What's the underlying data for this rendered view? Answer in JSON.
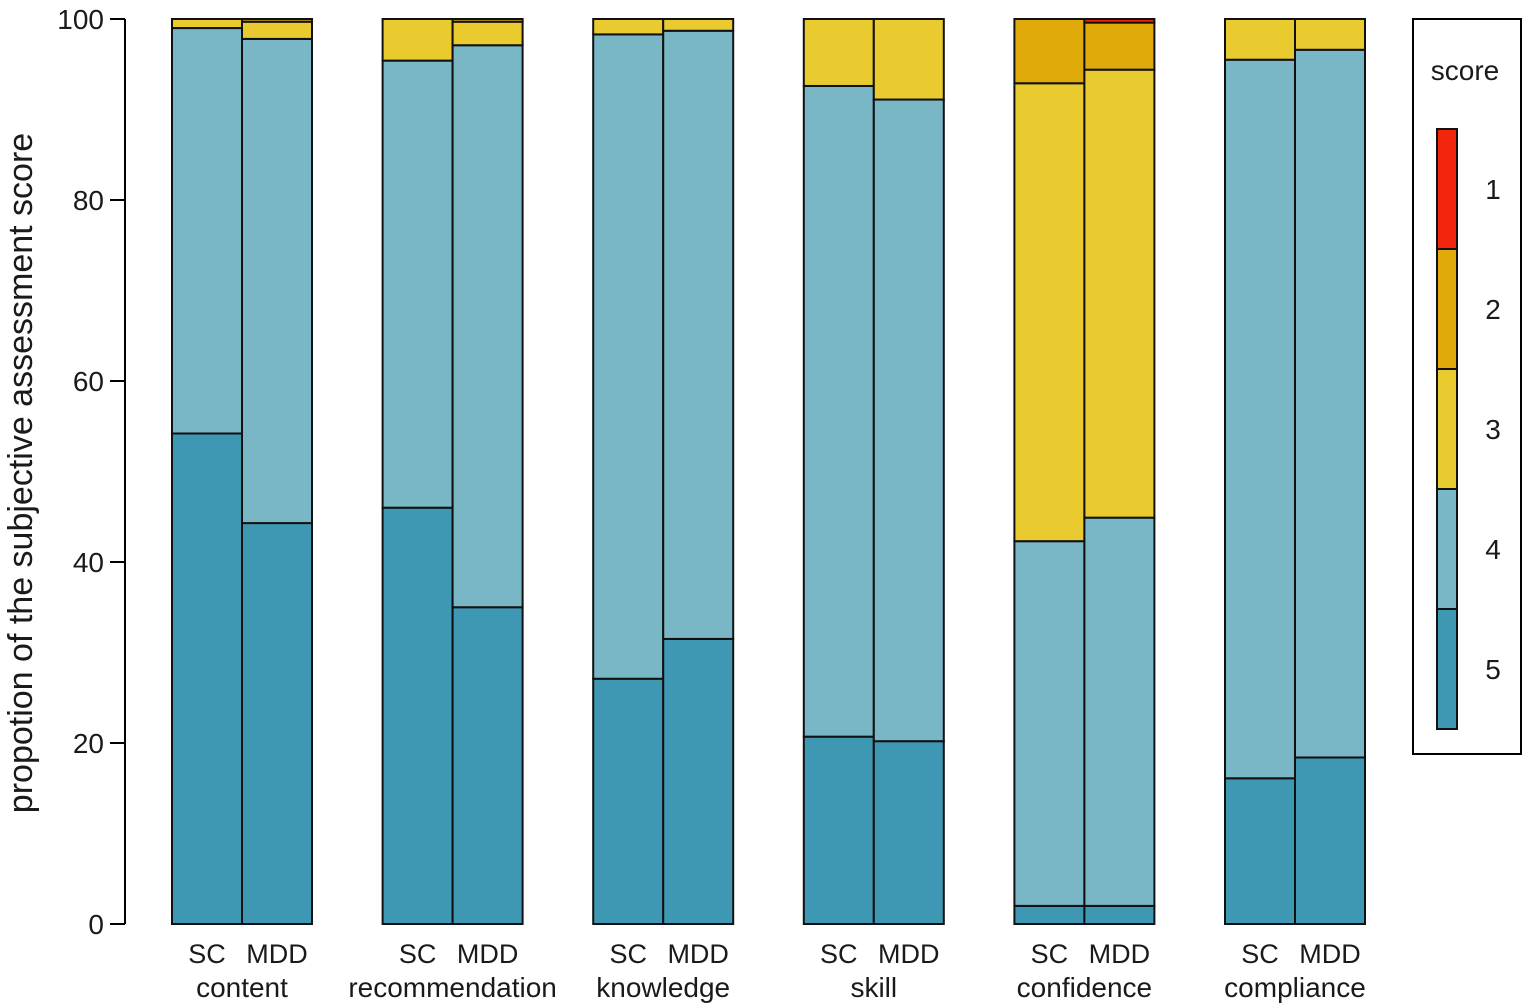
{
  "chart_data": {
    "type": "bar",
    "stacked": true,
    "ylabel": "propotion of  the subjective assessment score",
    "ylim": [
      0,
      100
    ],
    "yticks": [
      0,
      20,
      40,
      60,
      80,
      100
    ],
    "groups": [
      {
        "label": "content",
        "bars": [
          {
            "label": "SC",
            "segments": {
              "5": 54.2,
              "4": 44.8,
              "3": 1.0,
              "2": 0.0,
              "1": 0.0
            }
          },
          {
            "label": "MDD",
            "segments": {
              "5": 44.3,
              "4": 53.5,
              "3": 1.9,
              "2": 0.3,
              "1": 0.0
            }
          }
        ]
      },
      {
        "label": "recommendation",
        "bars": [
          {
            "label": "SC",
            "segments": {
              "5": 46.0,
              "4": 49.4,
              "3": 4.6,
              "2": 0.0,
              "1": 0.0
            }
          },
          {
            "label": "MDD",
            "segments": {
              "5": 35.0,
              "4": 62.1,
              "3": 2.6,
              "2": 0.3,
              "1": 0.0
            }
          }
        ]
      },
      {
        "label": "knowledge",
        "bars": [
          {
            "label": "SC",
            "segments": {
              "5": 27.1,
              "4": 71.2,
              "3": 1.7,
              "2": 0.0,
              "1": 0.0
            }
          },
          {
            "label": "MDD",
            "segments": {
              "5": 31.5,
              "4": 67.2,
              "3": 1.3,
              "2": 0.0,
              "1": 0.0
            }
          }
        ]
      },
      {
        "label": "skill",
        "bars": [
          {
            "label": "SC",
            "segments": {
              "5": 20.7,
              "4": 71.9,
              "3": 7.4,
              "2": 0.0,
              "1": 0.0
            }
          },
          {
            "label": "MDD",
            "segments": {
              "5": 20.2,
              "4": 70.9,
              "3": 8.9,
              "2": 0.0,
              "1": 0.0
            }
          }
        ]
      },
      {
        "label": "confidence",
        "bars": [
          {
            "label": "SC",
            "segments": {
              "5": 2.0,
              "4": 40.3,
              "3": 50.6,
              "2": 7.1,
              "1": 0.0
            }
          },
          {
            "label": "MDD",
            "segments": {
              "5": 2.0,
              "4": 42.9,
              "3": 49.5,
              "2": 5.2,
              "1": 0.4
            }
          }
        ]
      },
      {
        "label": "compliance",
        "bars": [
          {
            "label": "SC",
            "segments": {
              "5": 16.1,
              "4": 79.4,
              "3": 4.5,
              "2": 0.0,
              "1": 0.0
            }
          },
          {
            "label": "MDD",
            "segments": {
              "5": 18.4,
              "4": 78.2,
              "3": 3.4,
              "2": 0.0,
              "1": 0.0
            }
          }
        ]
      }
    ],
    "stack_order": [
      "5",
      "4",
      "3",
      "2",
      "1"
    ],
    "colors": {
      "1": "#f2260c",
      "2": "#e0ab0a",
      "3": "#e9cb30",
      "4": "#79b6c6",
      "5": "#3f98b3"
    },
    "legend": {
      "title": "score",
      "items": [
        "1",
        "2",
        "3",
        "4",
        "5"
      ],
      "position": "right"
    }
  }
}
